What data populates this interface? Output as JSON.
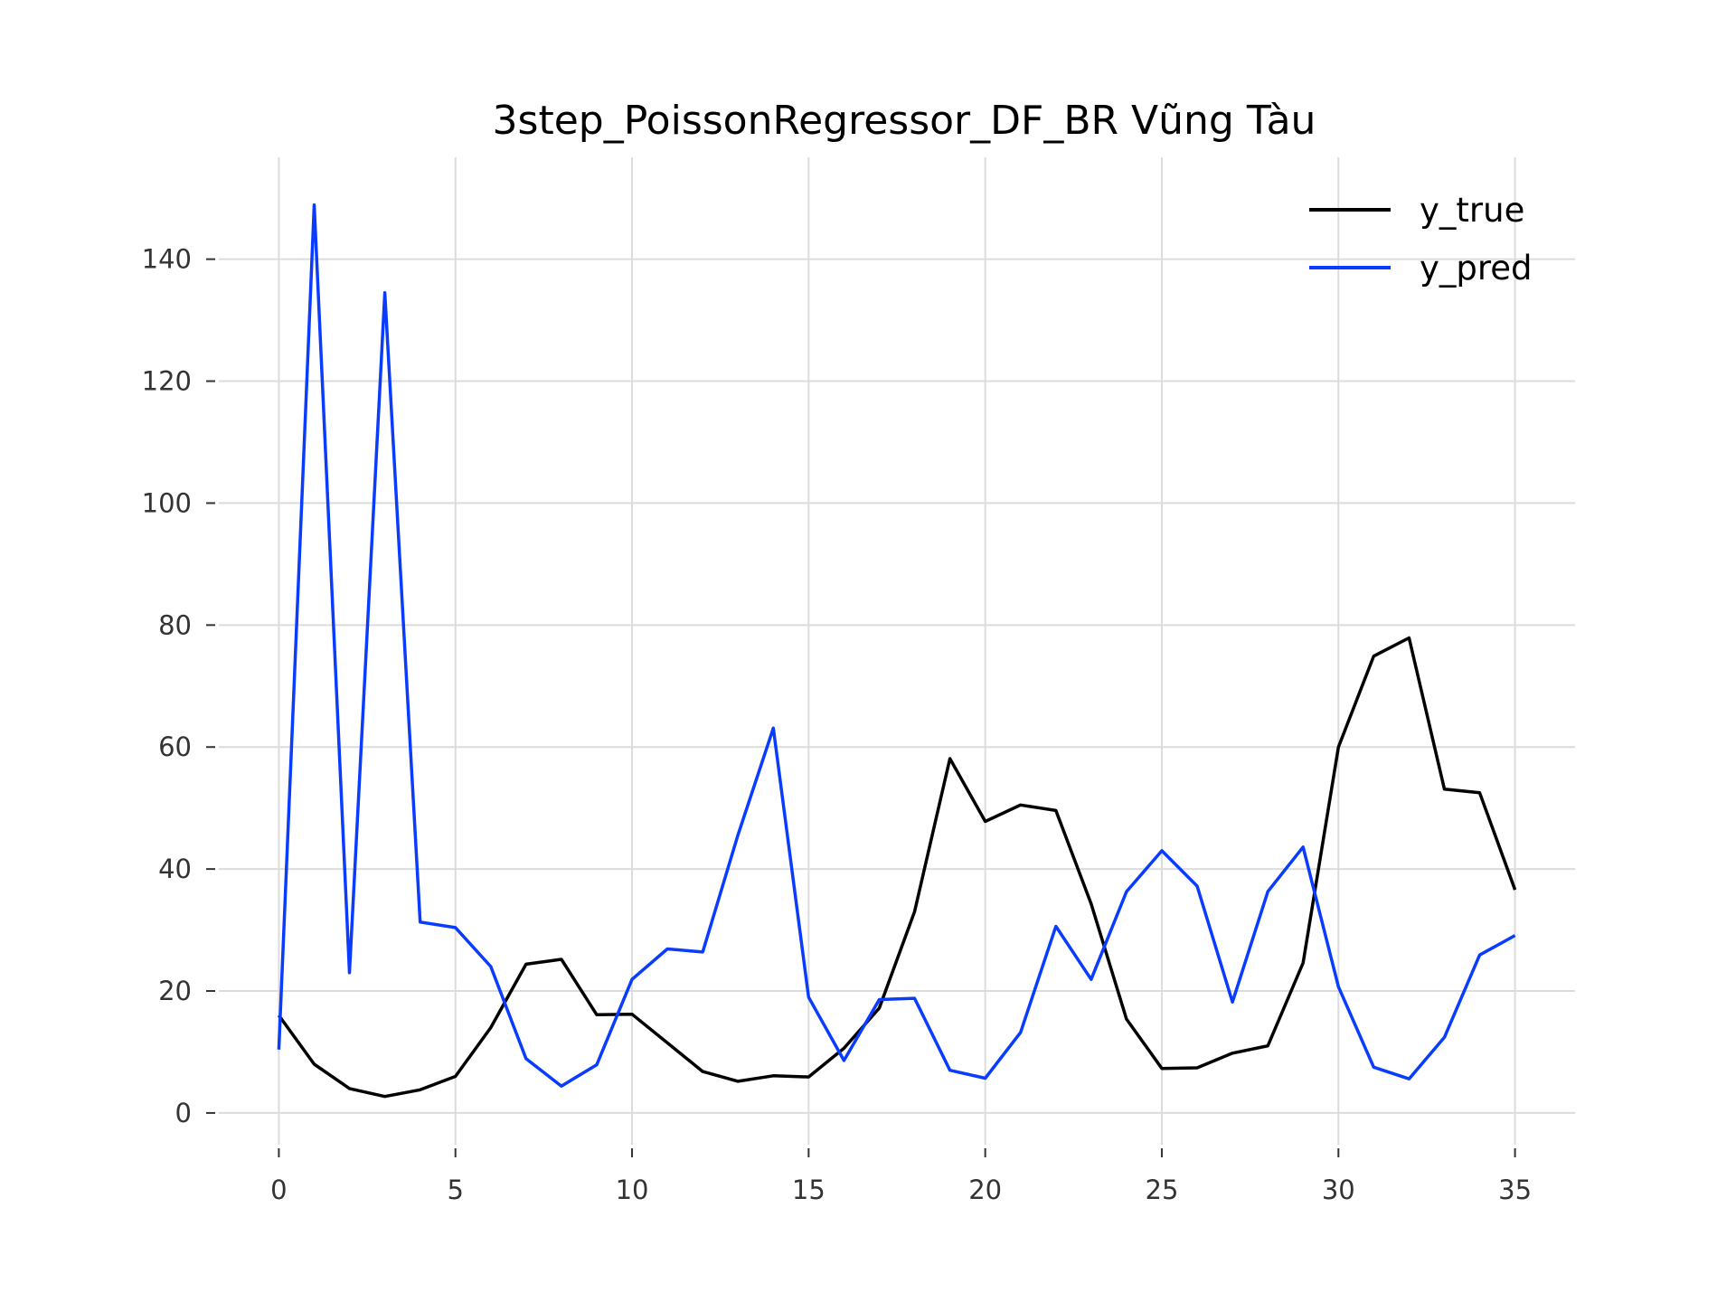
{
  "chart_data": {
    "type": "line",
    "title": "3step_PoissonRegressor_DF_BR Vũng Tàu",
    "xlabel": "",
    "ylabel": "",
    "xlim": [
      -1.7,
      36.7
    ],
    "ylim": [
      -5.2,
      156.7
    ],
    "x_ticks": [
      0,
      5,
      10,
      15,
      20,
      25,
      30,
      35
    ],
    "y_ticks": [
      0,
      20,
      40,
      60,
      80,
      100,
      120,
      140
    ],
    "grid": true,
    "legend_position": "top-right",
    "x": [
      0,
      1,
      2,
      3,
      4,
      5,
      6,
      7,
      8,
      9,
      10,
      11,
      12,
      13,
      14,
      15,
      16,
      17,
      18,
      19,
      20,
      21,
      22,
      23,
      24,
      25,
      26,
      27,
      28,
      29,
      30,
      31,
      32,
      33,
      34,
      35
    ],
    "series": [
      {
        "name": "y_true",
        "color": "#000000",
        "values": [
          16,
          8,
          4,
          2.7,
          3.8,
          6,
          14,
          24.4,
          25.2,
          16.1,
          16.2,
          11.5,
          6.8,
          5.2,
          6.1,
          5.9,
          10.6,
          17.2,
          33,
          58.1,
          47.8,
          50.5,
          49.6,
          34.3,
          15.4,
          7.3,
          7.4,
          9.8,
          11,
          24.6,
          60,
          74.9,
          77.9,
          53.1,
          52.5,
          36.6
        ]
      },
      {
        "name": "y_pred",
        "color": "#0a3cff",
        "values": [
          10.4,
          148.9,
          23,
          134.5,
          31.3,
          30.4,
          24,
          8.9,
          4.4,
          7.9,
          21.9,
          26.9,
          26.4,
          45.6,
          63.1,
          19,
          8.6,
          18.6,
          18.8,
          7,
          5.7,
          13.2,
          30.6,
          21.9,
          36.3,
          43,
          37.2,
          18.2,
          36.3,
          43.6,
          20.7,
          7.5,
          5.6,
          12.4,
          25.9,
          29.1
        ]
      }
    ]
  }
}
